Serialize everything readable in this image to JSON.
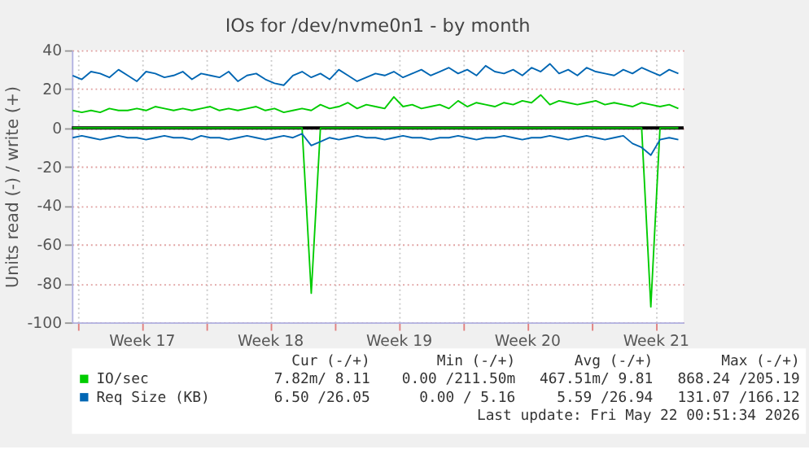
{
  "chart_data": {
    "type": "line",
    "title": "IOs for /dev/nvme0n1 - by month",
    "ylabel": "Units read (-) / write (+)",
    "x": [
      "2026-04-18T18:00",
      "2026-04-19T06:00",
      "2026-04-19T18:00",
      "2026-04-20T06:00",
      "2026-04-20T18:00",
      "2026-04-21T06:00",
      "2026-04-21T18:00",
      "2026-04-22T06:00",
      "2026-04-22T18:00",
      "2026-04-23T06:00",
      "2026-04-23T18:00",
      "2026-04-24T06:00",
      "2026-04-24T18:00",
      "2026-04-25T06:00",
      "2026-04-25T18:00",
      "2026-04-26T06:00",
      "2026-04-26T18:00",
      "2026-04-27T06:00",
      "2026-04-27T18:00",
      "2026-04-28T06:00",
      "2026-04-28T18:00",
      "2026-04-29T06:00",
      "2026-04-29T18:00",
      "2026-04-30T06:00",
      "2026-04-30T18:00",
      "2026-05-01T06:00",
      "2026-05-01T18:00",
      "2026-05-02T06:00",
      "2026-05-02T18:00",
      "2026-05-03T06:00",
      "2026-05-03T18:00",
      "2026-05-04T06:00",
      "2026-05-04T18:00",
      "2026-05-05T06:00",
      "2026-05-05T18:00",
      "2026-05-06T06:00",
      "2026-05-06T18:00",
      "2026-05-07T06:00",
      "2026-05-07T18:00",
      "2026-05-08T06:00",
      "2026-05-08T18:00",
      "2026-05-09T06:00",
      "2026-05-09T18:00",
      "2026-05-10T06:00",
      "2026-05-10T18:00",
      "2026-05-11T06:00",
      "2026-05-11T18:00",
      "2026-05-12T06:00",
      "2026-05-12T18:00",
      "2026-05-13T06:00",
      "2026-05-13T18:00",
      "2026-05-14T06:00",
      "2026-05-14T18:00",
      "2026-05-15T06:00",
      "2026-05-15T18:00",
      "2026-05-16T06:00",
      "2026-05-16T18:00",
      "2026-05-17T06:00",
      "2026-05-17T18:00",
      "2026-05-18T06:00",
      "2026-05-18T18:00",
      "2026-05-19T06:00",
      "2026-05-19T18:00",
      "2026-05-20T06:00",
      "2026-05-20T18:00",
      "2026-05-21T06:00",
      "2026-05-21T18:00"
    ],
    "series": [
      {
        "name": "IO/sec",
        "color": "#00cc00",
        "values": [
          9,
          8,
          9,
          8,
          10,
          9,
          9,
          10,
          9,
          11,
          10,
          9,
          10,
          9,
          10,
          11,
          9,
          10,
          9,
          10,
          11,
          9,
          10,
          8,
          9,
          10,
          9,
          12,
          10,
          11,
          13,
          10,
          12,
          11,
          10,
          16,
          11,
          12,
          10,
          11,
          12,
          10,
          14,
          11,
          13,
          12,
          11,
          13,
          12,
          14,
          13,
          17,
          12,
          14,
          13,
          12,
          13,
          14,
          12,
          13,
          12,
          11,
          13,
          12,
          11,
          12,
          10
        ]
      },
      {
        "color": "#00cc00",
        "values": [
          0,
          0,
          0,
          0,
          0,
          0,
          0,
          0,
          0,
          0,
          0,
          0,
          0,
          0,
          0,
          0,
          0,
          0,
          0,
          0,
          0,
          0,
          0,
          0,
          0,
          0,
          -85,
          0,
          0,
          0,
          0,
          0,
          0,
          0,
          0,
          0,
          0,
          0,
          0,
          0,
          0,
          0,
          0,
          0,
          0,
          0,
          0,
          0,
          0,
          0,
          0,
          0,
          0,
          0,
          0,
          0,
          0,
          0,
          0,
          0,
          0,
          0,
          0,
          -92,
          0,
          0,
          0
        ]
      },
      {
        "name": "Req Size (KB)",
        "color": "#0066b3",
        "values": [
          27,
          25,
          29,
          28,
          26,
          30,
          27,
          24,
          29,
          28,
          26,
          27,
          29,
          25,
          28,
          27,
          26,
          29,
          24,
          27,
          28,
          25,
          23,
          22,
          27,
          29,
          26,
          28,
          25,
          30,
          27,
          24,
          26,
          28,
          27,
          29,
          26,
          28,
          30,
          27,
          29,
          31,
          28,
          30,
          27,
          32,
          29,
          28,
          30,
          27,
          31,
          29,
          33,
          28,
          30,
          27,
          31,
          29,
          28,
          27,
          30,
          28,
          31,
          29,
          27,
          30,
          28
        ]
      },
      {
        "color": "#0066b3",
        "values": [
          -5,
          -4,
          -5,
          -6,
          -5,
          -4,
          -5,
          -5,
          -6,
          -5,
          -4,
          -5,
          -5,
          -6,
          -4,
          -5,
          -5,
          -6,
          -5,
          -4,
          -5,
          -6,
          -5,
          -4,
          -5,
          -3,
          -9,
          -7,
          -5,
          -6,
          -5,
          -4,
          -5,
          -5,
          -6,
          -5,
          -4,
          -5,
          -5,
          -6,
          -5,
          -5,
          -4,
          -5,
          -6,
          -5,
          -5,
          -4,
          -5,
          -6,
          -5,
          -5,
          -4,
          -5,
          -6,
          -5,
          -4,
          -5,
          -6,
          -5,
          -4,
          -8,
          -10,
          -14,
          -6,
          -5,
          -6
        ]
      }
    ],
    "xlim": [
      "2026-04-18T17:00",
      "2026-05-22T00:51"
    ],
    "xticks": [
      {
        "value": "2026-04-19",
        "label": null
      },
      {
        "value": "2026-04-22T12:00",
        "label": "Week 17"
      },
      {
        "value": "2026-04-26",
        "label": null
      },
      {
        "value": "2026-04-29T12:00",
        "label": "Week 18"
      },
      {
        "value": "2026-05-03",
        "label": null
      },
      {
        "value": "2026-05-06T12:00",
        "label": "Week 19"
      },
      {
        "value": "2026-05-10",
        "label": null
      },
      {
        "value": "2026-05-13T12:00",
        "label": "Week 20"
      },
      {
        "value": "2026-05-17",
        "label": null
      },
      {
        "value": "2026-05-20T12:00",
        "label": "Week 21"
      }
    ],
    "ylim": [
      -100,
      40
    ],
    "yticks": [
      -100,
      -80,
      -60,
      -40,
      -20,
      0,
      20,
      40
    ],
    "ref_lines": [
      {
        "axis": "y",
        "value": 0,
        "color": "#000000"
      }
    ],
    "grid": true,
    "legend": "bottom",
    "annotations": [
      "Cur (-/+)",
      "Min (-/+)",
      "Avg (-/+)",
      "Max (-/+)",
      "7.82m/ 8.11",
      "0.00 /211.50m",
      "467.51m/ 9.81",
      "868.24 /205.19",
      "6.50 /26.05",
      "0.00 / 5.16",
      "5.59 /26.94",
      "131.07 /166.12",
      "Last update: Fri May 22 00:51:34 2026"
    ]
  }
}
